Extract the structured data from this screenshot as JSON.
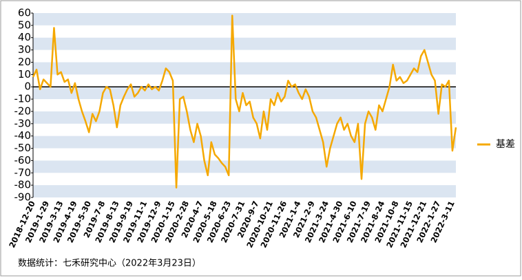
{
  "chart_data": {
    "type": "line",
    "categories": [
      "2018-12-20",
      null,
      null,
      null,
      "2019-1-29",
      null,
      null,
      null,
      "2019-3-13",
      null,
      null,
      null,
      "2019-4-19",
      null,
      null,
      null,
      "2019-5-30",
      null,
      null,
      null,
      "2019-7-8",
      null,
      null,
      null,
      "2019-8-13",
      null,
      null,
      null,
      "2019-9-19",
      null,
      null,
      null,
      "2019-11-1",
      null,
      null,
      null,
      "2019-12-9",
      null,
      null,
      null,
      "2020-1-15",
      null,
      null,
      null,
      "2020-2-28",
      null,
      null,
      null,
      "2020-4-7",
      null,
      null,
      null,
      "2020-5-18",
      null,
      null,
      null,
      "2020-6-23",
      null,
      null,
      null,
      "2020-7-31",
      null,
      null,
      null,
      "2020-9-7",
      null,
      null,
      null,
      "2020-10-21",
      null,
      null,
      null,
      "2020-11-26",
      null,
      null,
      null,
      "2021-1-4",
      null,
      null,
      null,
      "2021-2-9",
      null,
      null,
      null,
      "2021-3-24",
      null,
      null,
      null,
      "2021-4-30",
      null,
      null,
      null,
      "2021-6-10",
      null,
      null,
      null,
      "2021-7-19",
      null,
      null,
      null,
      "2021-8-24",
      null,
      null,
      null,
      "2021-10-8",
      null,
      null,
      null,
      "2021-11-15",
      null,
      null,
      null,
      "2021-12-21",
      null,
      null,
      null,
      "2022-1-27",
      null,
      null,
      null,
      "2022-3-11",
      null
    ],
    "series": [
      {
        "name": "基差",
        "color": "#f5a800",
        "values": [
          8,
          14,
          -2,
          6,
          3,
          0,
          48,
          10,
          12,
          4,
          6,
          -5,
          3,
          -10,
          -20,
          -28,
          -37,
          -22,
          -28,
          -20,
          -5,
          0,
          -2,
          -15,
          -33,
          -15,
          -8,
          -2,
          2,
          -8,
          -5,
          0,
          -3,
          2,
          -2,
          0,
          -3,
          5,
          15,
          12,
          5,
          -82,
          -10,
          -8,
          -20,
          -35,
          -45,
          -30,
          -40,
          -60,
          -72,
          -45,
          -55,
          -58,
          -62,
          -65,
          -72,
          58,
          -10,
          -20,
          -5,
          -15,
          -12,
          -25,
          -30,
          -42,
          -20,
          -35,
          -10,
          -15,
          -5,
          -12,
          -8,
          5,
          0,
          2,
          -5,
          -10,
          -2,
          -8,
          -20,
          -25,
          -35,
          -45,
          -65,
          -50,
          -40,
          -30,
          -25,
          -35,
          -30,
          -40,
          -45,
          -30,
          -75,
          -30,
          -20,
          -25,
          -35,
          -15,
          -20,
          -10,
          0,
          18,
          5,
          8,
          3,
          5,
          10,
          15,
          12,
          25,
          30,
          20,
          10,
          5,
          -22,
          2,
          0,
          5,
          -52,
          -33
        ]
      }
    ],
    "ylim": [
      -90,
      60
    ],
    "yticks": [
      -90,
      -80,
      -70,
      -60,
      -50,
      -40,
      -30,
      -20,
      -10,
      0,
      10,
      20,
      30,
      40,
      50,
      60
    ],
    "grid": true,
    "legend": "right",
    "source": "数据统计：七禾研究中心（2022年3月23日）"
  }
}
